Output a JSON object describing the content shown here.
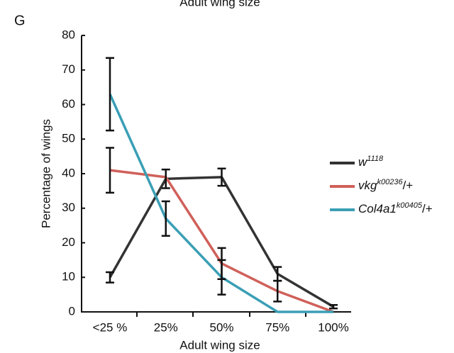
{
  "chart_data": {
    "type": "line",
    "title": "Adult wing size",
    "panel_label": "G",
    "x_label": "Adult wing size",
    "y_label": "Percentage of wings",
    "categories": [
      "<25 %",
      "25%",
      "50%",
      "75%",
      "100%"
    ],
    "ylim": [
      0,
      80
    ],
    "yticks": [
      0,
      10,
      20,
      30,
      40,
      50,
      60,
      70,
      80
    ],
    "series": [
      {
        "name": [
          "w",
          "1118"
        ],
        "color": "#333333",
        "values": [
          10,
          38.5,
          39,
          11,
          1.5
        ],
        "errors": [
          1.5,
          2.7,
          2.5,
          2,
          0.5
        ]
      },
      {
        "name": [
          "vkg",
          "k00236",
          "/+"
        ],
        "color": "#d0605a",
        "values": [
          41,
          39,
          14,
          6,
          0
        ],
        "errors": [
          6.5,
          null,
          4.5,
          3,
          null
        ]
      },
      {
        "name": [
          "Col4a1",
          "k00405",
          "/+"
        ],
        "color": "#3a9fb5",
        "values": [
          63,
          27,
          10,
          0,
          0
        ],
        "errors": [
          10.5,
          5,
          5,
          null,
          null
        ]
      }
    ]
  }
}
